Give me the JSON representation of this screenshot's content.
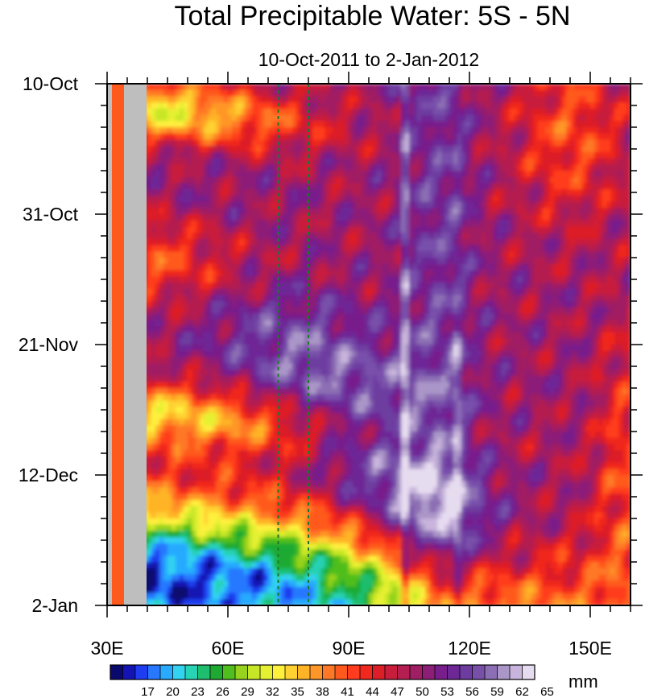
{
  "chart_data": {
    "type": "heatmap",
    "title": "Total Precipitable Water: 5S - 5N",
    "subtitle": "10-Oct-2011 to 2-Jan-2012",
    "xlabel": "",
    "ylabel": "",
    "x_range": [
      30,
      160
    ],
    "x_ticks": [
      {
        "value": 30,
        "label": "30E"
      },
      {
        "value": 60,
        "label": "60E"
      },
      {
        "value": 90,
        "label": "90E"
      },
      {
        "value": 120,
        "label": "120E"
      },
      {
        "value": 150,
        "label": "150E"
      }
    ],
    "y_range_days": [
      0,
      84
    ],
    "y_ticks": [
      {
        "day": 0,
        "label": "10-Oct"
      },
      {
        "day": 21,
        "label": "31-Oct"
      },
      {
        "day": 42,
        "label": "21-Nov"
      },
      {
        "day": 63,
        "label": "12-Dec"
      },
      {
        "day": 84,
        "label": "2-Jan"
      }
    ],
    "colorbar": {
      "units": "mm",
      "labels": [
        "17",
        "20",
        "23",
        "26",
        "29",
        "32",
        "35",
        "38",
        "41",
        "44",
        "47",
        "50",
        "53",
        "56",
        "59",
        "62",
        "65"
      ],
      "colors": [
        "#0a0a6e",
        "#1414b4",
        "#1e3cf0",
        "#2878ff",
        "#28aaff",
        "#32d2f0",
        "#28d2b4",
        "#1ebe6e",
        "#1eaa32",
        "#50be1e",
        "#96d21e",
        "#c8e628",
        "#e6f032",
        "#fff03c",
        "#ffd232",
        "#ffb428",
        "#ff9628",
        "#ff7828",
        "#ff5a1e",
        "#ff3c1e",
        "#f0281e",
        "#dc1e28",
        "#c81e3c",
        "#b41e50",
        "#a01e64",
        "#8c1e78",
        "#781e8c",
        "#6e2896",
        "#6e3ca0",
        "#7850aa",
        "#8c6eb4",
        "#aa96c8",
        "#c8b4dc",
        "#e6dcf0"
      ]
    },
    "land_mask_x": [
      [
        30,
        31.2
      ],
      [
        34.2,
        39.8
      ]
    ],
    "reference_lines_x": [
      72.5,
      80
    ],
    "max_value_mm": 65,
    "min_value_mm": 17
  }
}
